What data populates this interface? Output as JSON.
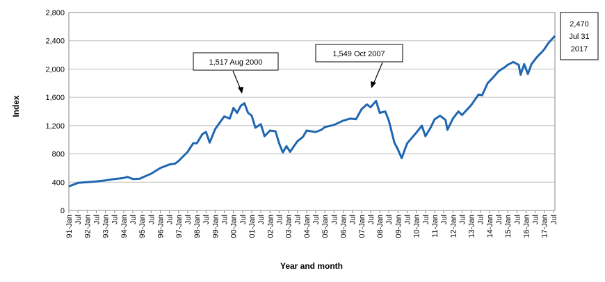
{
  "chart_data": {
    "type": "line",
    "title": "",
    "xlabel": "Year and month",
    "ylabel": "Index",
    "ylim": [
      0,
      2800
    ],
    "yticks": [
      0,
      400,
      800,
      1200,
      1600,
      2000,
      2400,
      2800
    ],
    "ytick_labels": [
      "0",
      "400",
      "800",
      "1,200",
      "1,600",
      "2,000",
      "2,400",
      "2,800"
    ],
    "grid": "horizontal",
    "line_color": "#1f66b0",
    "xtick_labels": [
      "91-Jan",
      "Jul",
      "92-Jan",
      "Jul",
      "93-Jan",
      "Jul",
      "94-Jan",
      "Jul",
      "95-Jan",
      "Jul",
      "96-Jan",
      "Jul",
      "97-Jan",
      "Jul",
      "98-Jan",
      "Jul",
      "99-Jan",
      "Jul",
      "00-Jan",
      "Jul",
      "01-Jan",
      "Jul",
      "02-Jan",
      "Jul",
      "03-Jan",
      "Jul",
      "04-Jan",
      "Jul",
      "05-Jan",
      "Jul",
      "06-Jan",
      "Jul",
      "07-Jan",
      "Jul",
      "08-Jan",
      "Jul",
      "09-Jan",
      "Jul",
      "10-Jan",
      "Jul",
      "11-Jan",
      "Jul",
      "12-Jan",
      "Jul",
      "13-Jan",
      "Jul",
      "14-Jan",
      "Jul",
      "15-Jan",
      "Jul",
      "16-Jan",
      "Jul",
      "17-Jan",
      "Jul"
    ],
    "series": [
      {
        "name": "Index",
        "points": [
          [
            1991.0,
            340
          ],
          [
            1991.5,
            390
          ],
          [
            1992.0,
            400
          ],
          [
            1992.5,
            410
          ],
          [
            1993.0,
            425
          ],
          [
            1993.5,
            445
          ],
          [
            1994.0,
            460
          ],
          [
            1994.2,
            475
          ],
          [
            1994.5,
            445
          ],
          [
            1994.9,
            450
          ],
          [
            1995.0,
            465
          ],
          [
            1995.5,
            520
          ],
          [
            1996.0,
            600
          ],
          [
            1996.5,
            650
          ],
          [
            1996.8,
            660
          ],
          [
            1997.0,
            700
          ],
          [
            1997.5,
            830
          ],
          [
            1997.8,
            950
          ],
          [
            1998.0,
            950
          ],
          [
            1998.3,
            1080
          ],
          [
            1998.5,
            1110
          ],
          [
            1998.7,
            960
          ],
          [
            1999.0,
            1150
          ],
          [
            1999.3,
            1260
          ],
          [
            1999.5,
            1330
          ],
          [
            1999.8,
            1300
          ],
          [
            2000.0,
            1450
          ],
          [
            2000.2,
            1380
          ],
          [
            2000.4,
            1480
          ],
          [
            2000.6,
            1517
          ],
          [
            2000.8,
            1380
          ],
          [
            2001.0,
            1340
          ],
          [
            2001.2,
            1170
          ],
          [
            2001.5,
            1220
          ],
          [
            2001.7,
            1050
          ],
          [
            2002.0,
            1130
          ],
          [
            2002.3,
            1120
          ],
          [
            2002.5,
            950
          ],
          [
            2002.7,
            820
          ],
          [
            2002.9,
            910
          ],
          [
            2003.1,
            830
          ],
          [
            2003.5,
            980
          ],
          [
            2003.8,
            1040
          ],
          [
            2004.0,
            1130
          ],
          [
            2004.5,
            1110
          ],
          [
            2004.8,
            1140
          ],
          [
            2005.0,
            1180
          ],
          [
            2005.5,
            1210
          ],
          [
            2006.0,
            1270
          ],
          [
            2006.4,
            1300
          ],
          [
            2006.7,
            1290
          ],
          [
            2007.0,
            1430
          ],
          [
            2007.3,
            1500
          ],
          [
            2007.5,
            1460
          ],
          [
            2007.8,
            1549
          ],
          [
            2008.0,
            1380
          ],
          [
            2008.3,
            1400
          ],
          [
            2008.5,
            1270
          ],
          [
            2008.8,
            960
          ],
          [
            2009.0,
            860
          ],
          [
            2009.2,
            740
          ],
          [
            2009.5,
            950
          ],
          [
            2010.0,
            1100
          ],
          [
            2010.3,
            1200
          ],
          [
            2010.5,
            1050
          ],
          [
            2010.8,
            1180
          ],
          [
            2011.0,
            1290
          ],
          [
            2011.3,
            1340
          ],
          [
            2011.6,
            1280
          ],
          [
            2011.7,
            1140
          ],
          [
            2012.0,
            1300
          ],
          [
            2012.3,
            1400
          ],
          [
            2012.5,
            1350
          ],
          [
            2013.0,
            1490
          ],
          [
            2013.4,
            1640
          ],
          [
            2013.6,
            1630
          ],
          [
            2013.9,
            1800
          ],
          [
            2014.2,
            1880
          ],
          [
            2014.5,
            1970
          ],
          [
            2014.8,
            2020
          ],
          [
            2015.0,
            2060
          ],
          [
            2015.3,
            2100
          ],
          [
            2015.6,
            2060
          ],
          [
            2015.7,
            1920
          ],
          [
            2015.9,
            2070
          ],
          [
            2016.1,
            1930
          ],
          [
            2016.3,
            2070
          ],
          [
            2016.6,
            2170
          ],
          [
            2016.9,
            2250
          ],
          [
            2017.0,
            2280
          ],
          [
            2017.2,
            2360
          ],
          [
            2017.58,
            2470
          ]
        ]
      }
    ],
    "annotations": [
      {
        "text": "1,517 Aug 2000",
        "x": 2000.6,
        "y": 1517
      },
      {
        "text": "1,549 Oct 2007",
        "x": 2007.8,
        "y": 1549
      }
    ],
    "end_label": [
      "2,470",
      "Jul 31",
      "2017"
    ]
  }
}
